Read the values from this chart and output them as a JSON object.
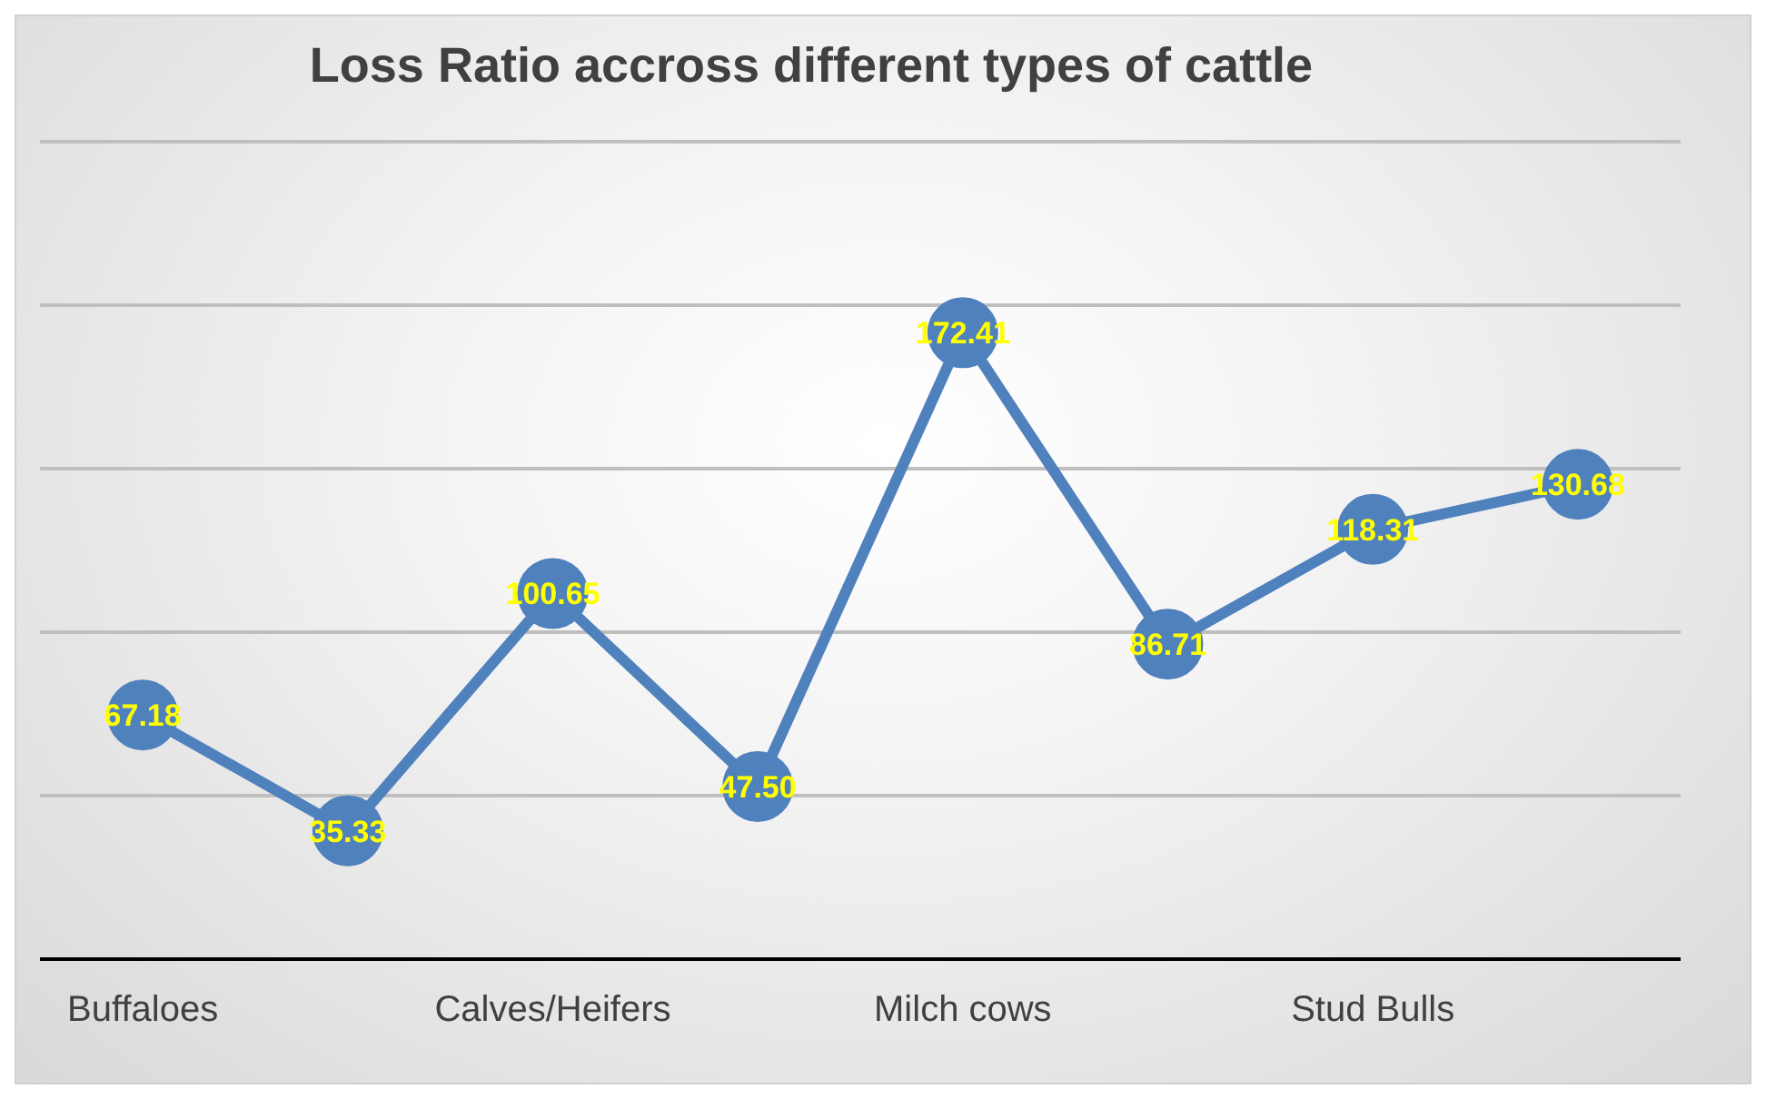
{
  "chart_data": {
    "type": "line",
    "title": "Loss Ratio accross different types of cattle",
    "categories": [
      "Buffaloes",
      null,
      "Calves/Heifers",
      null,
      "Milch cows",
      null,
      "Stud Bulls",
      null
    ],
    "series": [
      {
        "color": "#4f81bd",
        "values": [
          67.18,
          35.33,
          100.65,
          47.5,
          172.41,
          86.71,
          118.31,
          130.68
        ],
        "value_labels": [
          "67.18",
          "35.33",
          "100.65",
          "47.50",
          "172.41",
          "86.71",
          "118.31",
          "130.68"
        ]
      }
    ],
    "ylim": [
      0,
      225
    ],
    "yticks": [
      {
        "value": 0,
        "label": null
      },
      {
        "value": 45,
        "label": null
      },
      {
        "value": 90,
        "label": null
      },
      {
        "value": 135,
        "label": null
      },
      {
        "value": 180,
        "label": null
      },
      {
        "value": 225,
        "label": null
      }
    ],
    "tick_labels": "x",
    "grid": "y",
    "marker": "circle",
    "line_style": "solid"
  }
}
